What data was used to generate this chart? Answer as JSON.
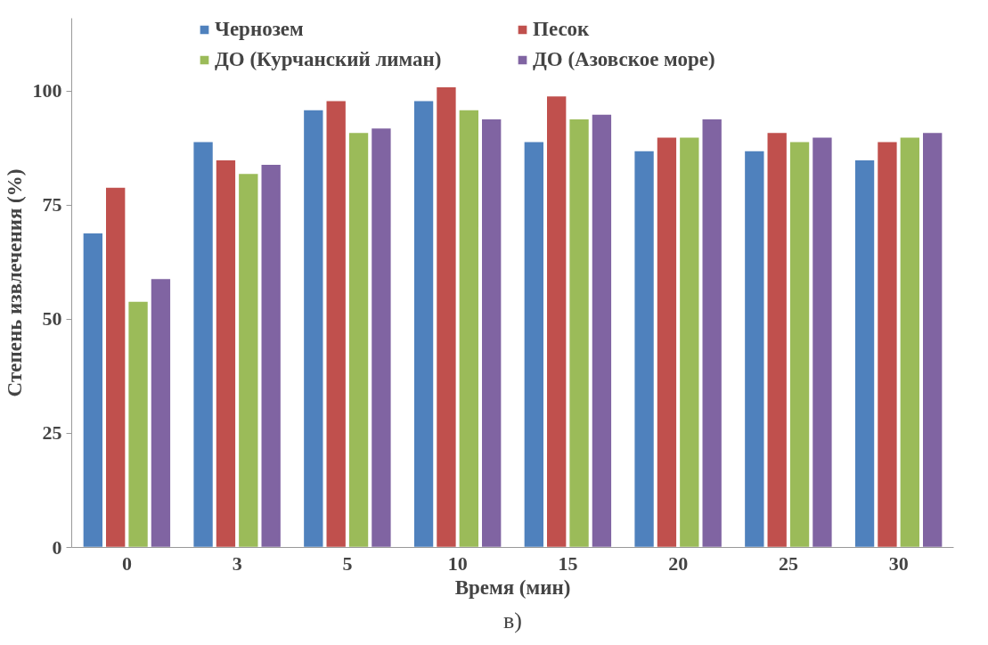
{
  "chart_data": {
    "type": "bar",
    "xlabel": "Время (мин)",
    "ylabel": "Степень извлечения (%)",
    "categories": [
      "0",
      "3",
      "5",
      "10",
      "15",
      "20",
      "25",
      "30"
    ],
    "series": [
      {
        "name": "Чернозем",
        "color": "#4f81bd",
        "values": [
          69,
          89,
          96,
          98,
          89,
          87,
          87,
          85
        ]
      },
      {
        "name": "Песок",
        "color": "#c0504d",
        "values": [
          79,
          85,
          98,
          101,
          99,
          90,
          91,
          89
        ]
      },
      {
        "name": "ДО (Курчанский лиман)",
        "color": "#9bbb59",
        "values": [
          54,
          82,
          91,
          96,
          94,
          90,
          89,
          90
        ]
      },
      {
        "name": "ДО (Азовское море)",
        "color": "#8064a2",
        "values": [
          59,
          84,
          92,
          94,
          95,
          94,
          90,
          91
        ]
      }
    ],
    "ylim": [
      0,
      116
    ],
    "yticks": [
      0,
      25,
      50,
      75,
      100
    ],
    "grid": false,
    "legend": "top",
    "annotations": [
      "в)"
    ]
  }
}
